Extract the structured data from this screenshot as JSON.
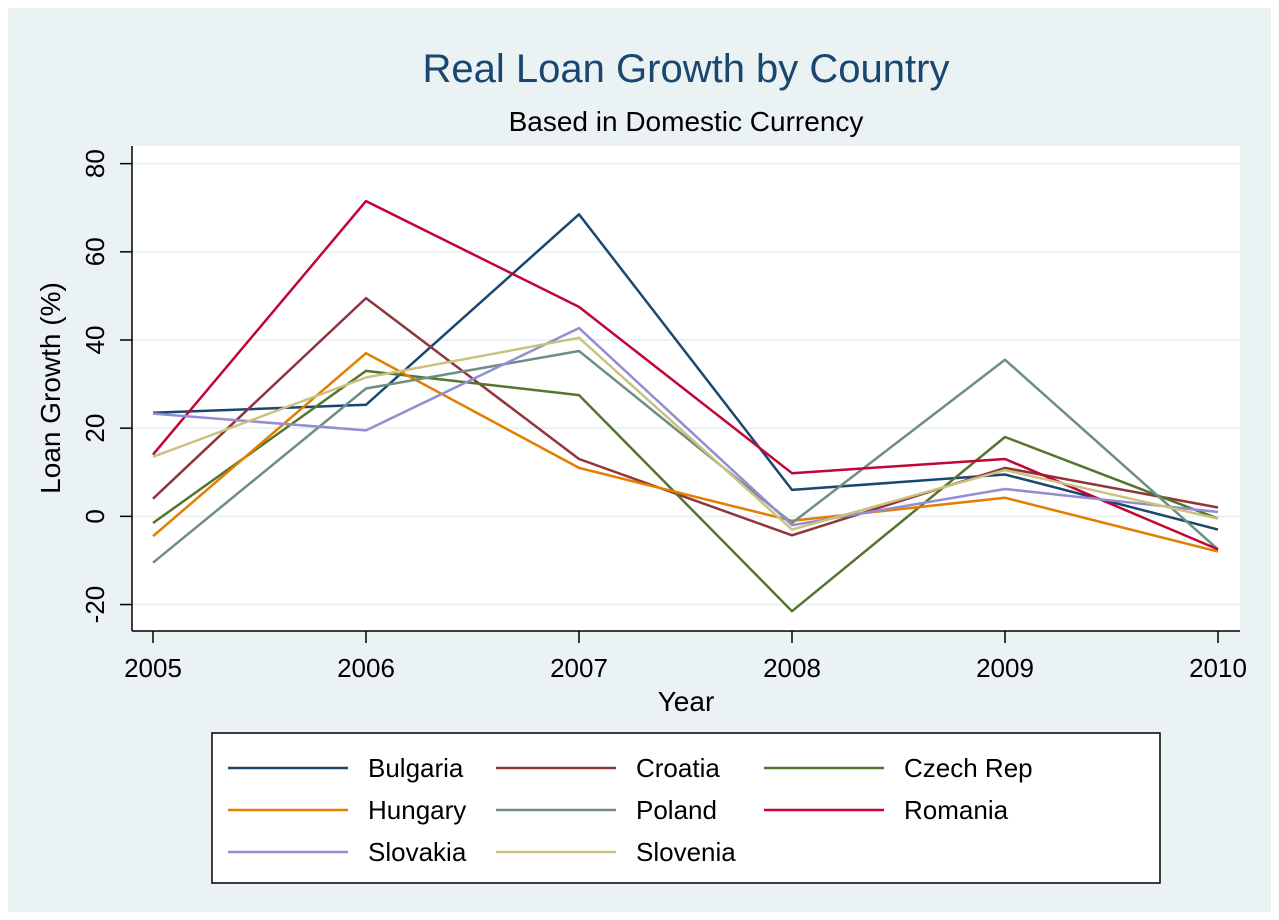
{
  "chart_data": {
    "type": "line",
    "title": "Real Loan Growth by Country",
    "subtitle": "Based in Domestic Currency",
    "xlabel": "Year",
    "ylabel": "Loan Growth (%)",
    "x": [
      2005,
      2006,
      2007,
      2008,
      2009,
      2010
    ],
    "x_ticks": [
      "2005",
      "2006",
      "2007",
      "2008",
      "2009",
      "2010"
    ],
    "y_ticks": [
      "-20",
      "0",
      "20",
      "40",
      "60",
      "80"
    ],
    "ylim": [
      -26,
      84
    ],
    "xlim": [
      2005,
      2010.1
    ],
    "grid": true,
    "legend_position": "bottom",
    "series": [
      {
        "name": "Bulgaria",
        "color": "#1a476f",
        "values": [
          23.5,
          25.3,
          68.5,
          6.0,
          9.5,
          -3.0
        ]
      },
      {
        "name": "Croatia",
        "color": "#90353b",
        "values": [
          4.0,
          49.5,
          13.0,
          -4.3,
          11.0,
          2.0
        ]
      },
      {
        "name": "Czech Rep",
        "color": "#55752f",
        "values": [
          -1.5,
          33.0,
          27.5,
          -21.5,
          18.0,
          -0.5
        ]
      },
      {
        "name": "Hungary",
        "color": "#e37e00",
        "values": [
          -4.5,
          37.0,
          11.0,
          -1.0,
          4.2,
          -8.0
        ]
      },
      {
        "name": "Poland",
        "color": "#6e8e84",
        "values": [
          -10.5,
          29.0,
          37.5,
          -1.5,
          35.5,
          -7.5
        ]
      },
      {
        "name": "Romania",
        "color": "#c10534",
        "values": [
          14.0,
          71.5,
          47.5,
          9.8,
          13.0,
          -7.5
        ]
      },
      {
        "name": "Slovakia",
        "color": "#938dd2",
        "values": [
          23.3,
          19.5,
          42.7,
          -2.0,
          6.2,
          1.0
        ]
      },
      {
        "name": "Slovenia",
        "color": "#cac27e",
        "values": [
          13.5,
          31.5,
          40.5,
          -3.0,
          10.5,
          -0.5
        ]
      }
    ]
  },
  "colors": {
    "outer_background": "#eaf2f3",
    "plot_background": "#ffffff",
    "grid": "#eaf2f3",
    "title": "#1a476f",
    "text": "#000000"
  }
}
